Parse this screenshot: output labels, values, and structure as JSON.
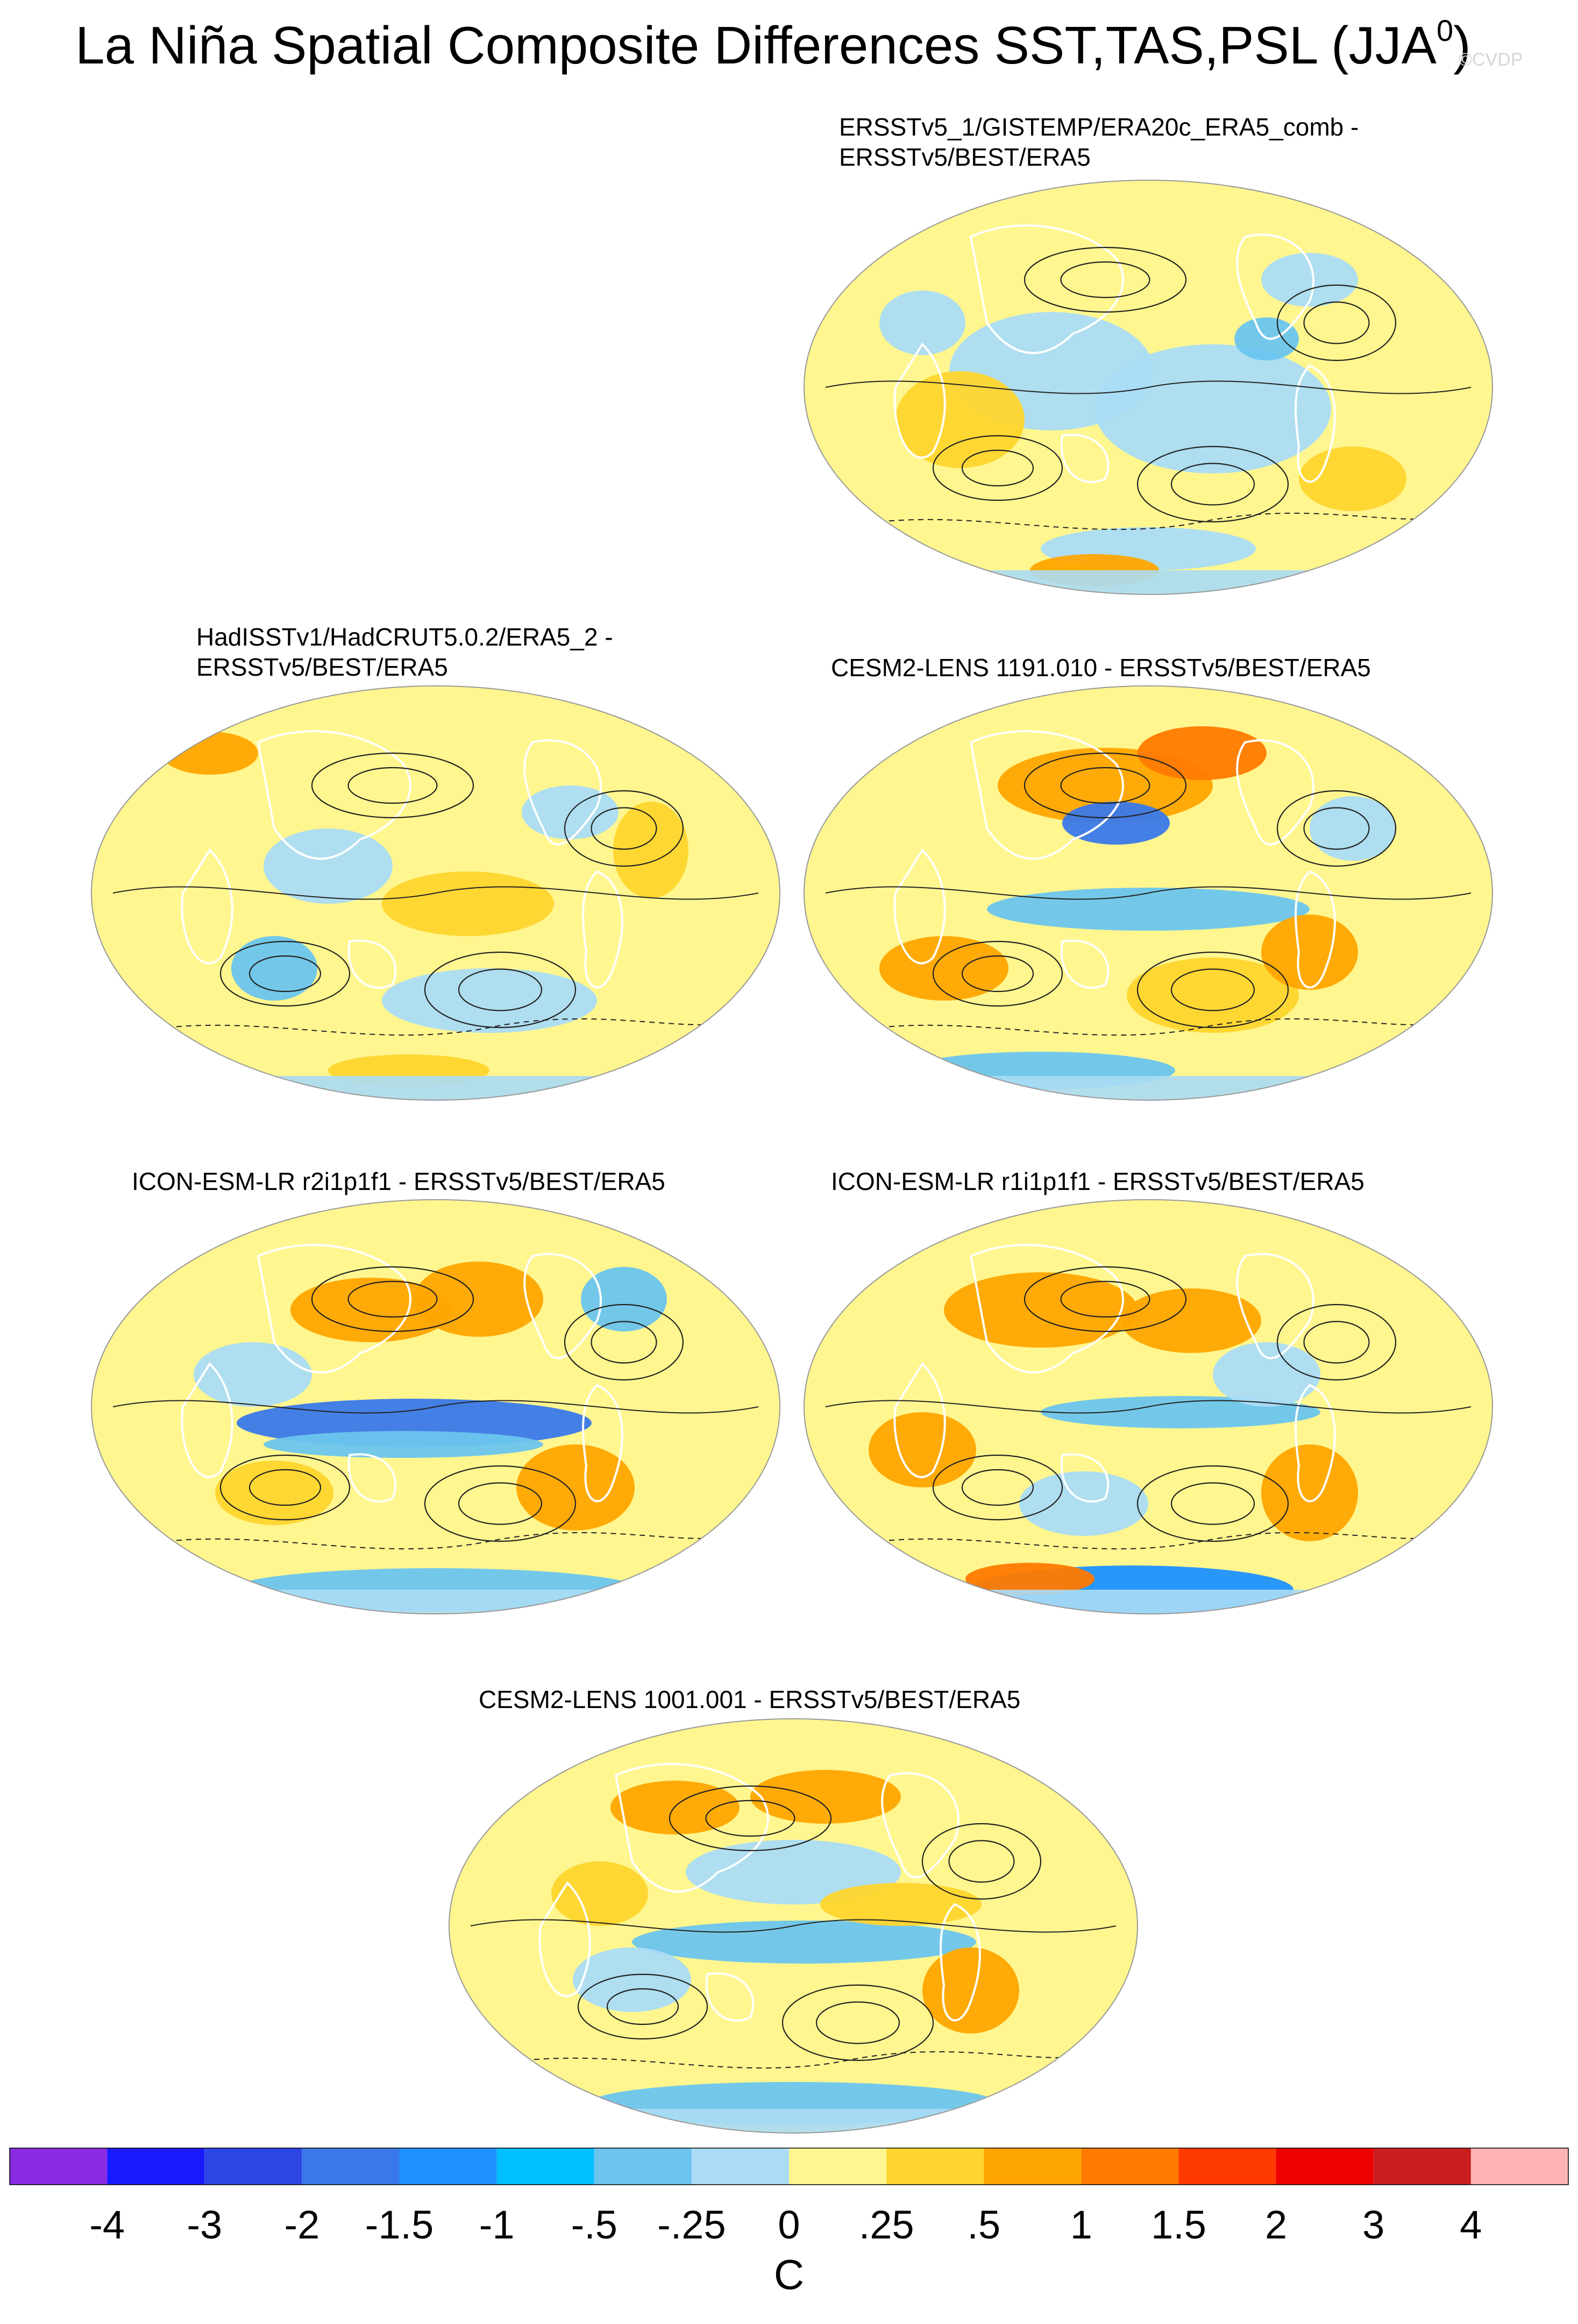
{
  "title": {
    "main": "La Niña Spatial Composite Differences SST,TAS,PSL (JJA",
    "superscript": "0",
    "close": ")",
    "watermark": "©CVDP"
  },
  "panels": [
    {
      "id": "p1",
      "title_lines": [
        "ERSSTv5_1/GISTEMP/ERA20c_ERA5_comb -",
        "ERSSTv5/BEST/ERA5"
      ]
    },
    {
      "id": "p2",
      "title_lines": [
        "HadISSTv1/HadCRUT5.0.2/ERA5_2 -",
        "ERSSTv5/BEST/ERA5"
      ]
    },
    {
      "id": "p3",
      "title_lines": [
        "CESM2-LENS 1191.010 - ERSSTv5/BEST/ERA5"
      ]
    },
    {
      "id": "p4",
      "title_lines": [
        "ICON-ESM-LR r2i1p1f1 - ERSSTv5/BEST/ERA5"
      ]
    },
    {
      "id": "p5",
      "title_lines": [
        "ICON-ESM-LR r1i1p1f1 - ERSSTv5/BEST/ERA5"
      ]
    },
    {
      "id": "p6",
      "title_lines": [
        "CESM2-LENS 1001.001 - ERSSTv5/BEST/ERA5"
      ]
    }
  ],
  "colorbar": {
    "colors": [
      "#8a2be2",
      "#1a1aff",
      "#2c46e6",
      "#3a78ea",
      "#1e90ff",
      "#00bfff",
      "#6cc5ee",
      "#aadcf5",
      "#fff68f",
      "#ffd52e",
      "#ffa500",
      "#ff7a00",
      "#ff3a00",
      "#ee0000",
      "#c81e1e",
      "#ffb4b4"
    ],
    "labels": [
      "-4",
      "-3",
      "-2",
      "-1.5",
      "-1",
      "-.5",
      "-.25",
      "0",
      ".25",
      ".5",
      "1",
      "1.5",
      "2",
      "3",
      "4"
    ],
    "units": "C"
  }
}
